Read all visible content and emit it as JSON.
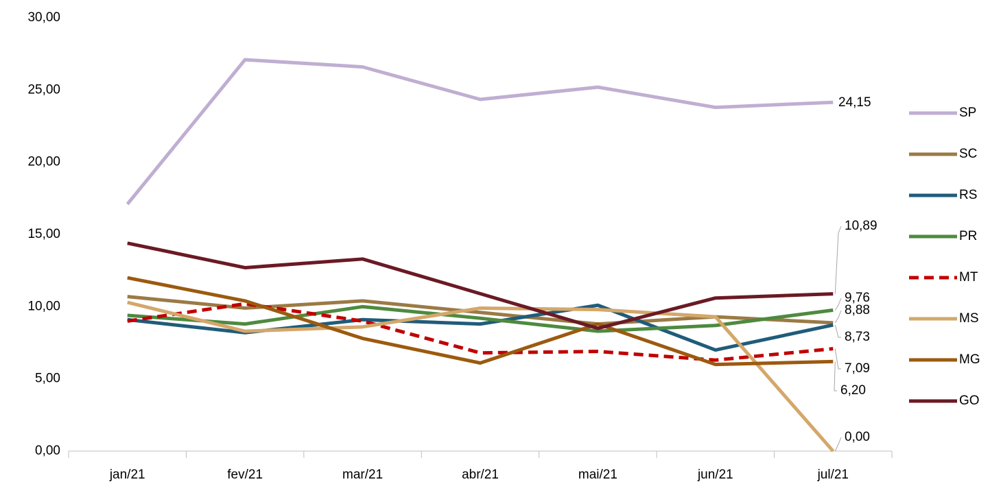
{
  "chart_data": {
    "type": "line",
    "categories": [
      "jan/21",
      "fev/21",
      "mar/21",
      "abr/21",
      "mai/21",
      "jun/21",
      "jul/21"
    ],
    "ylim": [
      0,
      30
    ],
    "yticks": [
      {
        "value": 0,
        "label": "0,00"
      },
      {
        "value": 5,
        "label": "5,00"
      },
      {
        "value": 10,
        "label": "10,00"
      },
      {
        "value": 15,
        "label": "15,00"
      },
      {
        "value": 20,
        "label": "20,00"
      },
      {
        "value": 25,
        "label": "25,00"
      },
      {
        "value": 30,
        "label": "30,00"
      }
    ],
    "grid": false,
    "legend": "right",
    "series": [
      {
        "name": "SP",
        "color": "#c0aed2",
        "values": [
          17.1,
          27.1,
          26.6,
          24.35,
          25.2,
          23.8,
          24.15
        ],
        "value_labels": [
          null,
          null,
          null,
          null,
          null,
          null,
          "24,15"
        ]
      },
      {
        "name": "SC",
        "color": "#9b7a45",
        "values": [
          10.7,
          9.9,
          10.4,
          9.6,
          8.8,
          9.3,
          8.88
        ],
        "value_labels": [
          null,
          null,
          null,
          null,
          null,
          null,
          "8,88"
        ]
      },
      {
        "name": "RS",
        "color": "#1f5c7a",
        "values": [
          9.1,
          8.2,
          9.1,
          8.8,
          10.1,
          7.0,
          8.73
        ],
        "value_labels": [
          null,
          null,
          null,
          null,
          null,
          null,
          "8,73"
        ]
      },
      {
        "name": "PR",
        "color": "#4e8a3f",
        "values": [
          9.4,
          8.8,
          10.0,
          9.2,
          8.3,
          8.7,
          9.76
        ],
        "value_labels": [
          null,
          null,
          null,
          null,
          null,
          null,
          "9,76"
        ]
      },
      {
        "name": "MT",
        "color": "#c00000",
        "dashed": true,
        "values": [
          9.0,
          10.2,
          9.0,
          6.8,
          6.9,
          6.3,
          7.09
        ],
        "value_labels": [
          null,
          null,
          null,
          null,
          null,
          null,
          "7,09"
        ]
      },
      {
        "name": "MS",
        "color": "#d4a76a",
        "values": [
          10.3,
          8.3,
          8.6,
          9.9,
          9.8,
          9.3,
          0.0
        ],
        "value_labels": [
          null,
          null,
          null,
          null,
          null,
          null,
          "0,00"
        ]
      },
      {
        "name": "MG",
        "color": "#9c5a0f",
        "values": [
          12.0,
          10.4,
          7.8,
          6.1,
          8.8,
          6.0,
          6.2
        ],
        "value_labels": [
          null,
          null,
          null,
          null,
          null,
          null,
          "6,20"
        ]
      },
      {
        "name": "GO",
        "color": "#6a1a25",
        "values": [
          14.4,
          12.7,
          13.3,
          10.9,
          8.5,
          10.6,
          10.89
        ],
        "value_labels": [
          null,
          null,
          null,
          null,
          null,
          null,
          "10,89"
        ]
      }
    ]
  }
}
